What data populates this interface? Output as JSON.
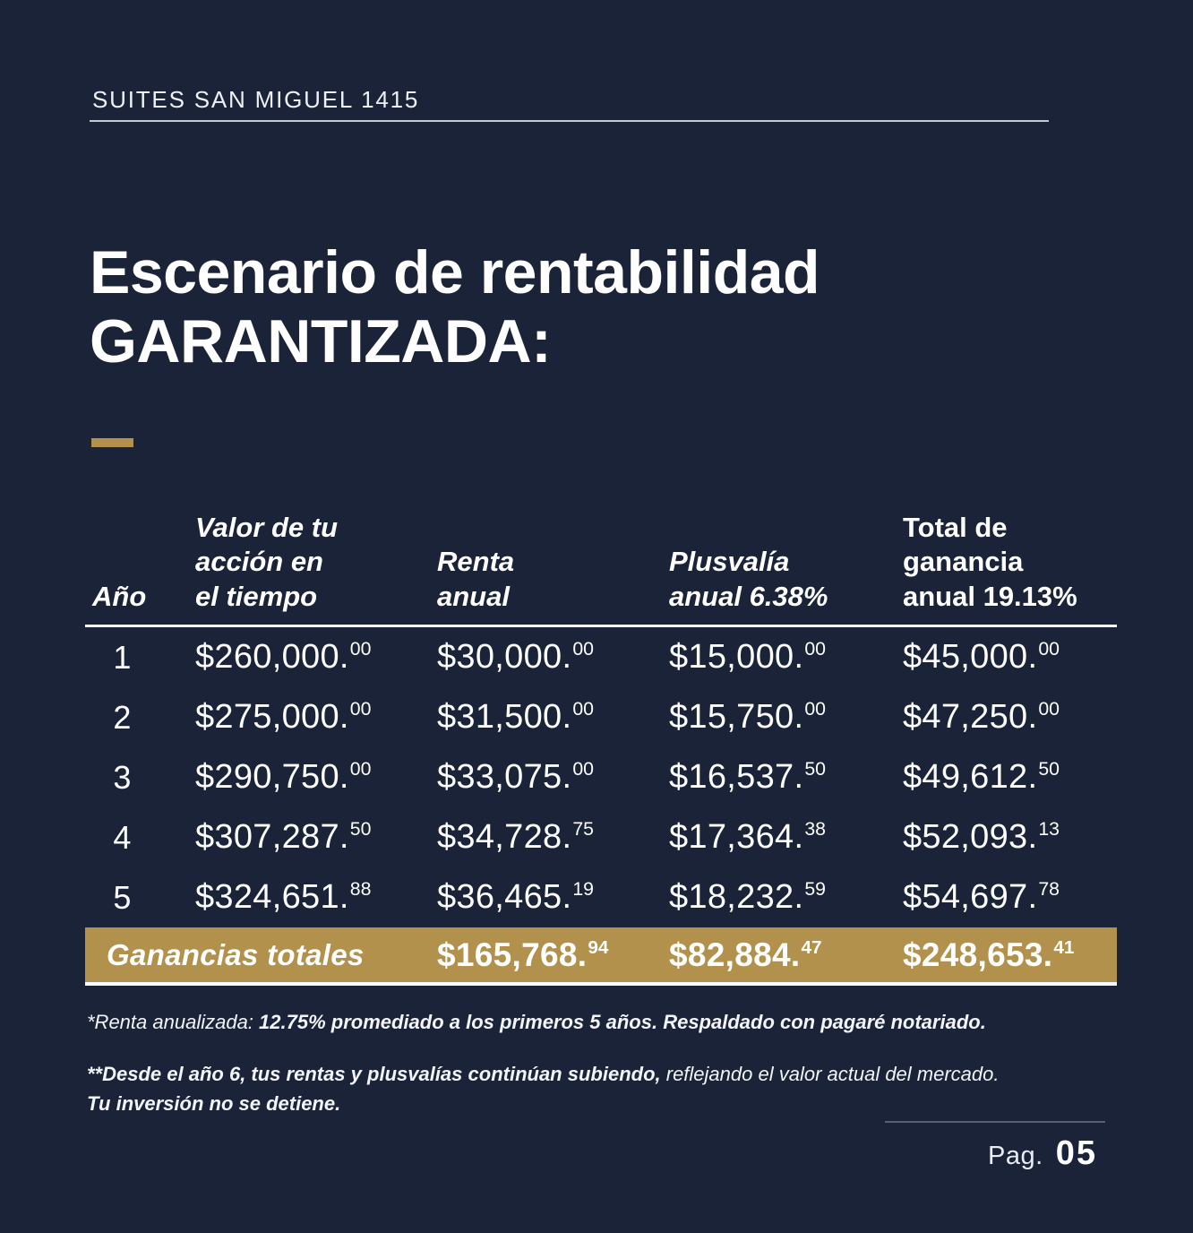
{
  "colors": {
    "background": "#1a2337",
    "gold": "#b2914c",
    "text": "#ffffff"
  },
  "header": {
    "brand": "SUITES SAN MIGUEL 1415"
  },
  "title": {
    "line1": "Escenario de rentabilidad",
    "line2": "GARANTIZADA:"
  },
  "table": {
    "headers": [
      {
        "lines": [
          "Año"
        ],
        "italic": true
      },
      {
        "lines": [
          "Valor de tu",
          "acción en",
          "el tiempo"
        ],
        "italic": true
      },
      {
        "lines": [
          "Renta",
          "anual"
        ],
        "italic": true
      },
      {
        "lines": [
          "Plusvalía",
          "anual 6.38%"
        ],
        "italic": true
      },
      {
        "lines": [
          "Total de",
          "ganancia",
          "anual 19.13%"
        ],
        "italic": false
      }
    ],
    "rows": [
      {
        "year": "1",
        "cells": [
          {
            "m": "$260,000.",
            "c": "00"
          },
          {
            "m": "$30,000.",
            "c": "00"
          },
          {
            "m": "$15,000.",
            "c": "00"
          },
          {
            "m": "$45,000.",
            "c": "00"
          }
        ]
      },
      {
        "year": "2",
        "cells": [
          {
            "m": "$275,000.",
            "c": "00"
          },
          {
            "m": "$31,500.",
            "c": "00"
          },
          {
            "m": "$15,750.",
            "c": "00"
          },
          {
            "m": "$47,250.",
            "c": "00"
          }
        ]
      },
      {
        "year": "3",
        "cells": [
          {
            "m": "$290,750.",
            "c": "00"
          },
          {
            "m": "$33,075.",
            "c": "00"
          },
          {
            "m": "$16,537.",
            "c": "50"
          },
          {
            "m": "$49,612.",
            "c": "50"
          }
        ]
      },
      {
        "year": "4",
        "cells": [
          {
            "m": "$307,287.",
            "c": "50"
          },
          {
            "m": "$34,728.",
            "c": "75"
          },
          {
            "m": "$17,364.",
            "c": "38"
          },
          {
            "m": "$52,093.",
            "c": "13"
          }
        ]
      },
      {
        "year": "5",
        "cells": [
          {
            "m": "$324,651.",
            "c": "88"
          },
          {
            "m": "$36,465.",
            "c": "19"
          },
          {
            "m": "$18,232.",
            "c": "59"
          },
          {
            "m": "$54,697.",
            "c": "78"
          }
        ]
      }
    ],
    "totals": {
      "label": "Ganancias totales",
      "values": [
        {
          "m": "$165,768.",
          "c": "94"
        },
        {
          "m": "$82,884.",
          "c": "47"
        },
        {
          "m": "$248,653.",
          "c": "41"
        }
      ]
    }
  },
  "footnotes": {
    "note1": {
      "light": "*Renta anualizada: ",
      "bold": "12.75% promediado a los primeros 5 años. Respaldado con pagaré notariado."
    },
    "note2": {
      "bold": "**Desde el año 6, tus rentas y plusvalías continúan subiendo,",
      "light": " reflejando el valor actual del mercado.",
      "line2_bold": "Tu inversión no se detiene."
    }
  },
  "footer": {
    "page_label": "Pag.",
    "page_number": "05"
  }
}
